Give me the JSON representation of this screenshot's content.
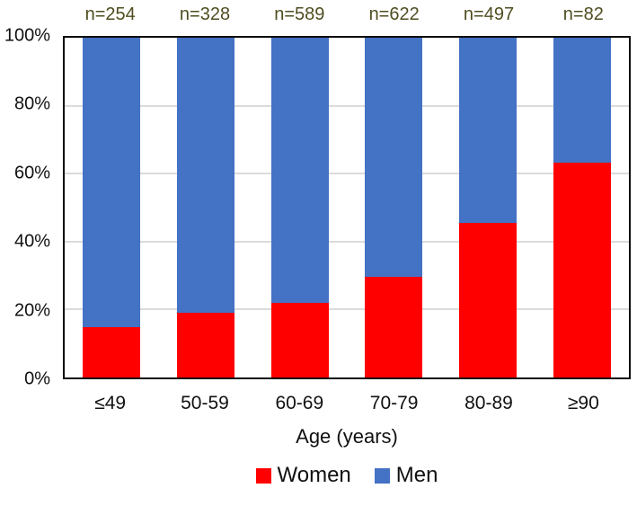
{
  "chart_data": {
    "type": "bar",
    "stacked": true,
    "title": "",
    "xlabel": "Age (years)",
    "ylabel": "",
    "ylim": [
      0,
      100
    ],
    "grid": true,
    "legend_position": "bottom",
    "categories": [
      "≤49",
      "50-59",
      "60-69",
      "70-79",
      "80-89",
      "≥90"
    ],
    "counts": [
      "n=254",
      "n=328",
      "n=589",
      "n=622",
      "n=497",
      "n=82"
    ],
    "yticks": [
      "0%",
      "20%",
      "40%",
      "60%",
      "80%",
      "100%"
    ],
    "series": [
      {
        "name": "Women",
        "color": "#FF0000",
        "values": [
          14.7,
          19.0,
          22.0,
          29.7,
          45.4,
          63.2
        ]
      },
      {
        "name": "Men",
        "color": "#4472C4",
        "values": [
          85.3,
          81.0,
          78.0,
          70.3,
          54.6,
          36.8
        ]
      }
    ]
  },
  "colors": {
    "women": "#FF0000",
    "men": "#4472C4",
    "count_label": "#4F4D20",
    "gridline": "#DBDBDB",
    "axis_frame": "#0D0D0D",
    "axis_text": "#111111"
  }
}
